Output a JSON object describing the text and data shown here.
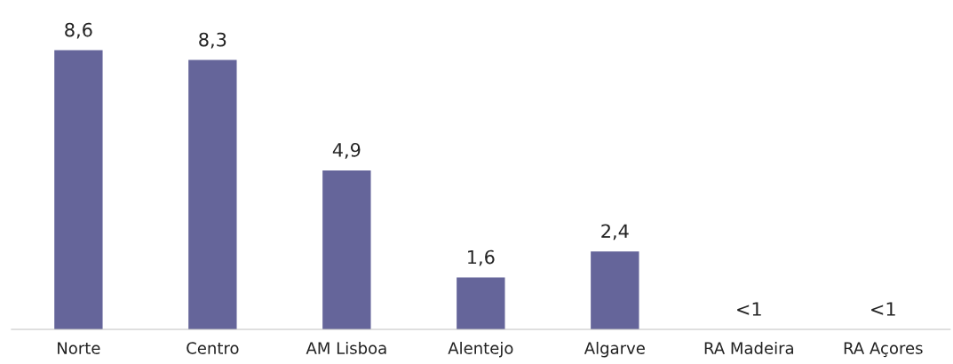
{
  "chart_data": {
    "type": "bar",
    "categories": [
      "Norte",
      "Centro",
      "AM Lisboa",
      "Alentejo",
      "Algarve",
      "RA Madeira",
      "RA Açores"
    ],
    "values": [
      8.6,
      8.3,
      4.9,
      1.6,
      2.4,
      null,
      null
    ],
    "value_labels": [
      "8,6",
      "8,3",
      "4,9",
      "1,6",
      "2,4",
      "<1",
      "<1"
    ],
    "color": "#65659a",
    "grid": false,
    "legend": false
  }
}
